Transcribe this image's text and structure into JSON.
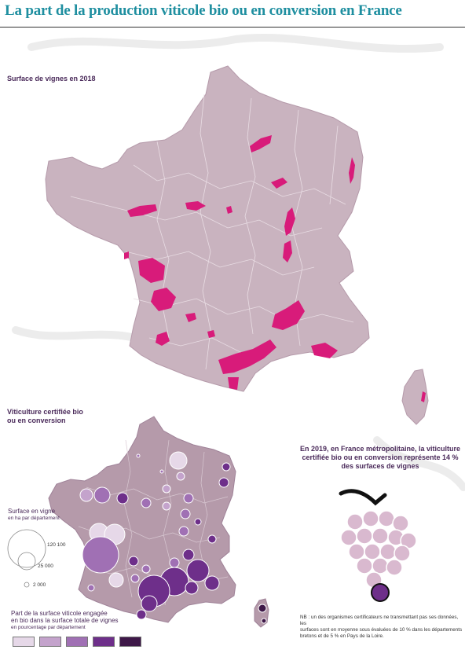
{
  "title": "La part de la production viticole bio ou en conversion en France",
  "map1": {
    "label": "Surface de vignes en 2018"
  },
  "map2": {
    "label_line1": "Viticulture certifiée bio",
    "label_line2": "ou en conversion"
  },
  "stat": {
    "line1": "En 2019, en France métropolitaine, la viticulture",
    "line2": "certifiée bio ou en conversion représente 14 %",
    "line3": "des surfaces de vignes"
  },
  "legend_size": {
    "title": "Surface en vigne",
    "subtitle": "en ha par département",
    "values": [
      "120 100",
      "25 000",
      "2 000"
    ]
  },
  "legend_share": {
    "title_line1": "Part de la surface viticole engagée",
    "title_line2": "en bio dans la surface totale de vignes",
    "subtitle": "en pourcentage par département",
    "colors": [
      "#e6d8e8",
      "#c4a3cc",
      "#a070b4",
      "#6e2f8a",
      "#3e1848"
    ]
  },
  "nb": {
    "line1": "NB : un des organismes certificateurs ne transmettant pas ses données, les",
    "line2": "surfaces sont en moyenne sous évaluées de 10 % dans les départements",
    "line3": "bretons et de 5 % en Pays de la Loire."
  },
  "colors": {
    "land": "#c9b3bf",
    "land_dark": "#b59aaa",
    "border": "#e9dde4",
    "vines": "#d81b7a",
    "title": "#1f8fa0"
  }
}
